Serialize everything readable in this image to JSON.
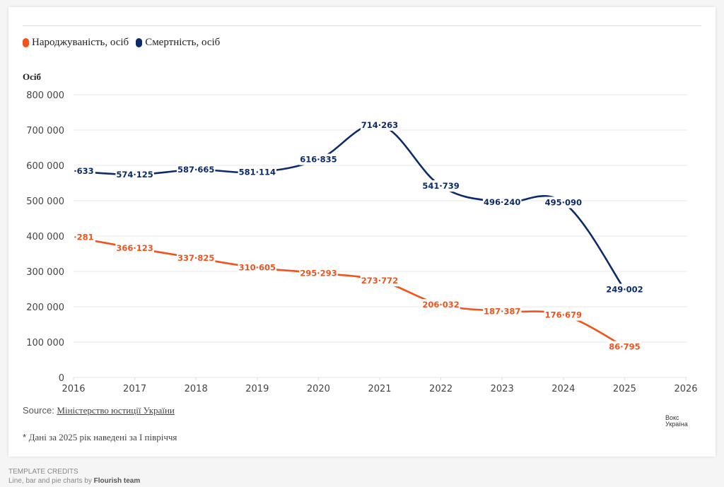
{
  "legend": [
    {
      "label": "Народжуваність, осіб",
      "color": "#f2531c"
    },
    {
      "label": "Смертність, осіб",
      "color": "#0d2a6b"
    }
  ],
  "y_unit": "Осіб",
  "source": {
    "prefix": "Source: ",
    "link": "Міністерство юстиції України"
  },
  "note": {
    "star": "* ",
    "text": "Дані за 2025 рік наведені за І півріччя"
  },
  "logo": {
    "line1": "Вокс",
    "line2": "Україна"
  },
  "credits": {
    "heading": "TEMPLATE CREDITS",
    "text": "Line, bar and pie charts by ",
    "author": "Flourish team"
  },
  "chart_data": {
    "type": "line",
    "title": "",
    "xlabel": "",
    "ylabel": "Осіб",
    "x": [
      2016,
      2017,
      2018,
      2019,
      2020,
      2021,
      2022,
      2023,
      2024,
      2025
    ],
    "x_ticks": [
      "2016",
      "2017",
      "2018",
      "2019",
      "2020",
      "2021",
      "2022",
      "2023",
      "2024",
      "2025",
      "2026"
    ],
    "xlim": [
      2016,
      2026
    ],
    "ylim": [
      0,
      800000
    ],
    "y_ticks": [
      {
        "value": 0,
        "label": "0"
      },
      {
        "value": 100000,
        "label": "100 000"
      },
      {
        "value": 200000,
        "label": "200 000"
      },
      {
        "value": 300000,
        "label": "300 000"
      },
      {
        "value": 400000,
        "label": "400 000"
      },
      {
        "value": 500000,
        "label": "500 000"
      },
      {
        "value": 600000,
        "label": "600 000"
      },
      {
        "value": 700000,
        "label": "700 000"
      },
      {
        "value": 800000,
        "label": "800 000"
      }
    ],
    "grid": true,
    "legend_position": "top-left",
    "series": [
      {
        "name": "Народжуваність, осіб",
        "color": "#f2531c",
        "values": [
          397000,
          366123,
          337825,
          310605,
          295293,
          273772,
          206032,
          187387,
          176679,
          86795
        ],
        "labels": [
          "·281",
          "366·123",
          "337·825",
          "310·605",
          "295·293",
          "273·772",
          "206·032",
          "187·387",
          "176·679",
          "86·795"
        ]
      },
      {
        "name": "Смертність, осіб",
        "color": "#0d2a6b",
        "values": [
          584000,
          574125,
          587665,
          581114,
          616835,
          714263,
          541739,
          496240,
          495090,
          249002
        ],
        "labels": [
          "·633",
          "574·125",
          "587·665",
          "581·114",
          "616·835",
          "714·263",
          "541·739",
          "496·240",
          "495·090",
          "249·002"
        ]
      }
    ]
  }
}
